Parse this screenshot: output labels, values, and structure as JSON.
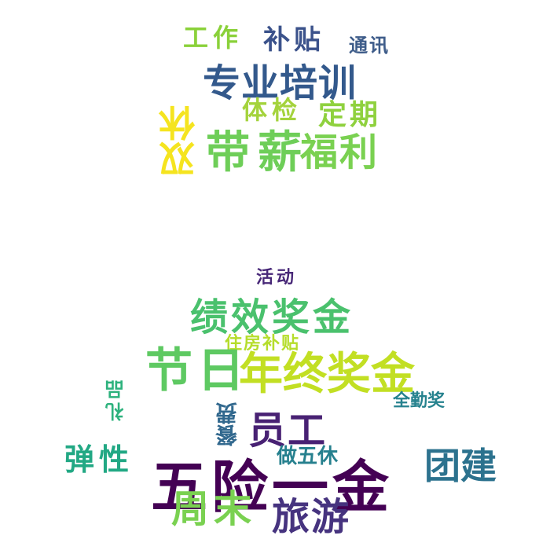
{
  "words": [
    {
      "text": "工作",
      "color": "#8ad13a"
    },
    {
      "text": "补贴",
      "color": "#3b528b"
    },
    {
      "text": "通讯",
      "color": "#3f5d8a"
    },
    {
      "text": "专业培训",
      "color": "#33598c"
    },
    {
      "text": "体检",
      "color": "#a4d33c"
    },
    {
      "text": "定期",
      "color": "#8fd13e"
    },
    {
      "text": "双休",
      "color": "#f5e41f"
    },
    {
      "text": "带薪",
      "color": "#6ece58"
    },
    {
      "text": "福利",
      "color": "#7ad151"
    },
    {
      "text": "活动",
      "color": "#482878"
    },
    {
      "text": "绩效奖金",
      "color": "#4ac16d"
    },
    {
      "text": "住房补贴",
      "color": "#b5dd2b"
    },
    {
      "text": "节日",
      "color": "#5ec962"
    },
    {
      "text": "年终奖金",
      "color": "#c2df23"
    },
    {
      "text": "礼品",
      "color": "#2db27d"
    },
    {
      "text": "全勤奖",
      "color": "#26828e"
    },
    {
      "text": "餐费",
      "color": "#31688e"
    },
    {
      "text": "员工",
      "color": "#482173"
    },
    {
      "text": "弹性",
      "color": "#22a884"
    },
    {
      "text": "做五休",
      "color": "#26808e"
    },
    {
      "text": "团建",
      "color": "#2c728e"
    },
    {
      "text": "五险一金",
      "color": "#440154"
    },
    {
      "text": "周末",
      "color": "#7ad151"
    },
    {
      "text": "旅游",
      "color": "#46337f"
    }
  ]
}
